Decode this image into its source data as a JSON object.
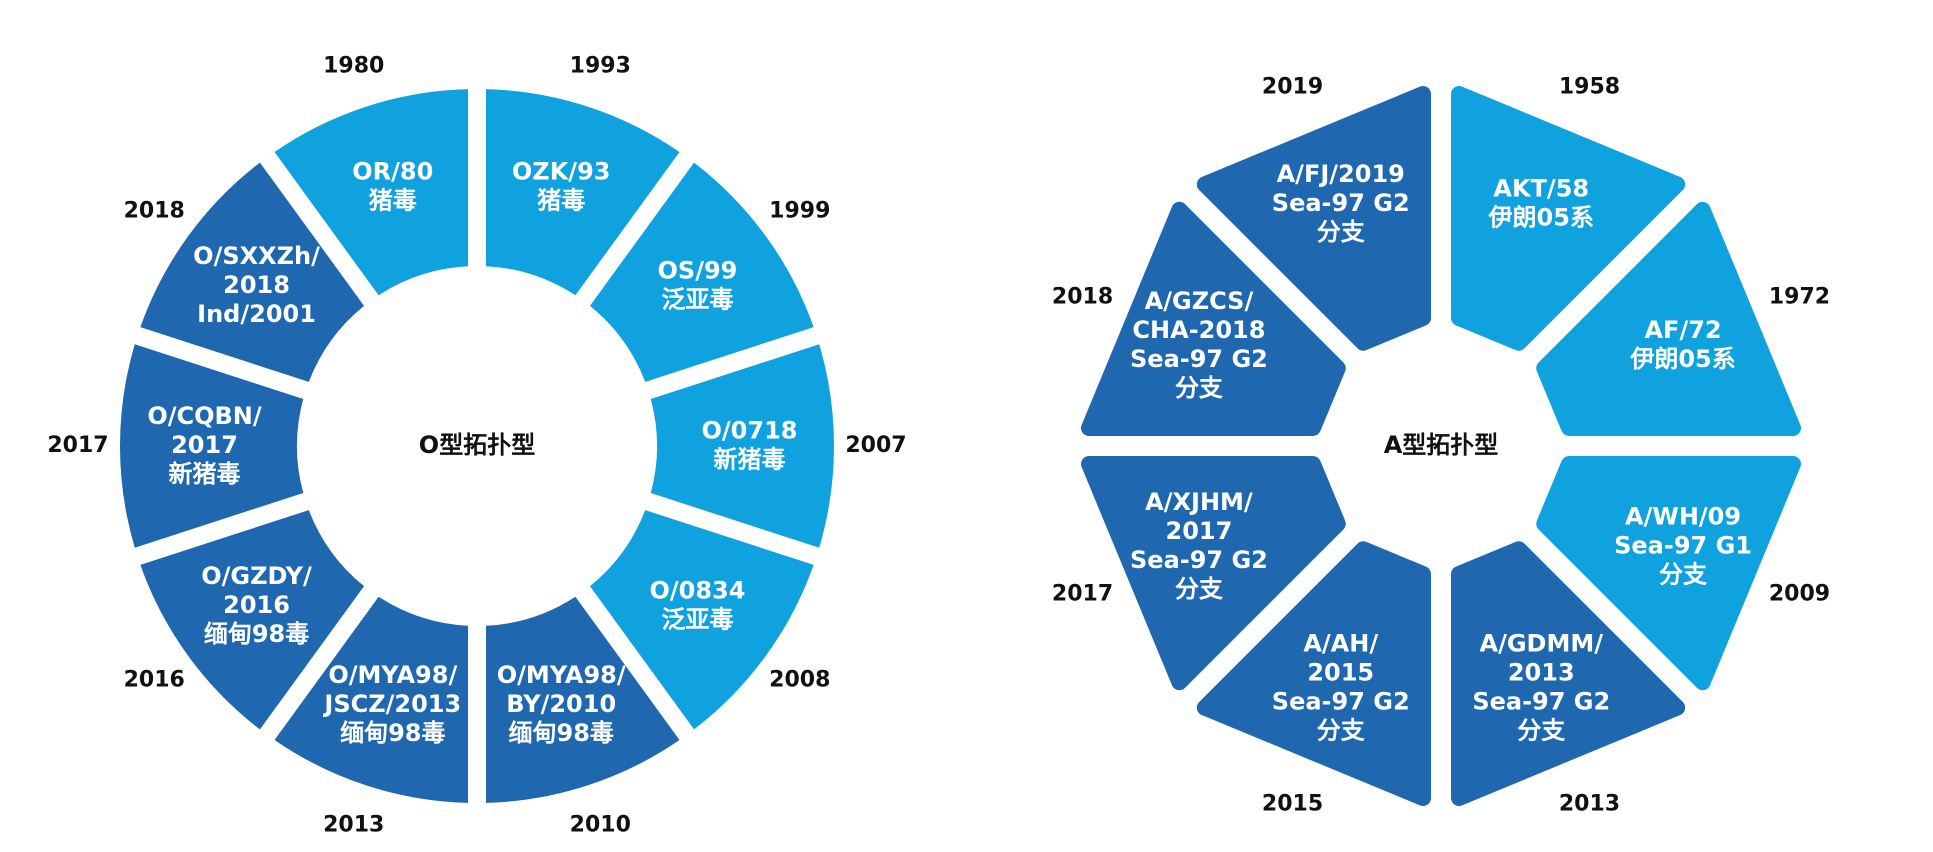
{
  "left": {
    "center": "O型拓扑型",
    "segments": [
      {
        "year": "1993",
        "lines": [
          "OZK/93",
          "猪毒"
        ],
        "color": "#0fa2de"
      },
      {
        "year": "1999",
        "lines": [
          "OS/99",
          "泛亚毒"
        ],
        "color": "#0fa2de"
      },
      {
        "year": "2007",
        "lines": [
          "O/0718",
          "新猪毒"
        ],
        "color": "#0fa2de"
      },
      {
        "year": "2008",
        "lines": [
          "O/0834",
          "泛亚毒"
        ],
        "color": "#0fa2de"
      },
      {
        "year": "2010",
        "lines": [
          "O/MYA98/",
          "BY/2010",
          "缅甸98毒"
        ],
        "color": "#1f67ae"
      },
      {
        "year": "2013",
        "lines": [
          "O/MYA98/",
          "JSCZ/2013",
          "缅甸98毒"
        ],
        "color": "#1f67ae"
      },
      {
        "year": "2016",
        "lines": [
          "O/GZDY/",
          "2016",
          "缅甸98毒"
        ],
        "color": "#1f67ae"
      },
      {
        "year": "2017",
        "lines": [
          "O/CQBN/",
          "2017",
          "新猪毒"
        ],
        "color": "#1f67ae"
      },
      {
        "year": "2018",
        "lines": [
          "O/SXXZh/",
          "2018",
          "Ind/2001"
        ],
        "color": "#1f67ae"
      },
      {
        "year": "1980",
        "lines": [
          "OR/80",
          "猪毒"
        ],
        "color": "#0fa2de"
      }
    ]
  },
  "right": {
    "center": "A型拓扑型",
    "segments": [
      {
        "year": "1958",
        "lines": [
          "AKT/58",
          "伊朗05系"
        ],
        "color": "#0fa2de"
      },
      {
        "year": "1972",
        "lines": [
          "AF/72",
          "伊朗05系"
        ],
        "color": "#0fa2de"
      },
      {
        "year": "2009",
        "lines": [
          "A/WH/09",
          "Sea-97 G1",
          "分支"
        ],
        "color": "#0fa2de"
      },
      {
        "year": "2013",
        "lines": [
          "A/GDMM/",
          "2013",
          "Sea-97 G2",
          "分支"
        ],
        "color": "#1f67ae"
      },
      {
        "year": "2015",
        "lines": [
          "A/AH/",
          "2015",
          "Sea-97 G2",
          "分支"
        ],
        "color": "#1f67ae"
      },
      {
        "year": "2017",
        "lines": [
          "A/XJHM/",
          "2017",
          "Sea-97 G2",
          "分支"
        ],
        "color": "#1f67ae"
      },
      {
        "year": "2018",
        "lines": [
          "A/GZCS/",
          "CHA-2018",
          "Sea-97 G2",
          "分支"
        ],
        "color": "#1f67ae"
      },
      {
        "year": "2019",
        "lines": [
          "A/FJ/2019",
          "Sea-97 G2",
          "分支"
        ],
        "color": "#1f67ae"
      }
    ]
  }
}
